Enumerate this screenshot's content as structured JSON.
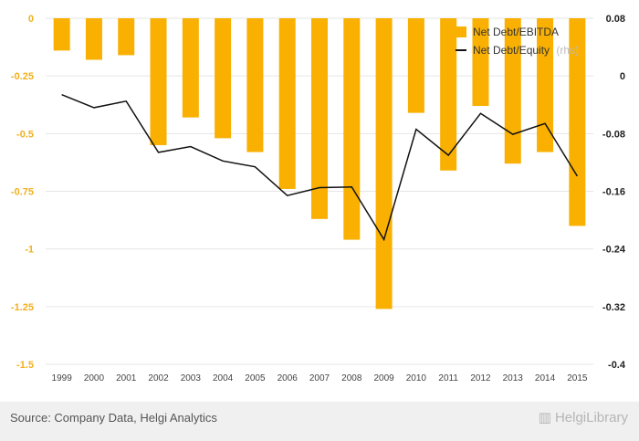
{
  "chart_data": {
    "type": "bar+line",
    "categories": [
      "1999",
      "2000",
      "2001",
      "2002",
      "2003",
      "2004",
      "2005",
      "2006",
      "2007",
      "2008",
      "2009",
      "2010",
      "2011",
      "2012",
      "2013",
      "2014",
      "2015"
    ],
    "series": [
      {
        "name": "Net Debt/EBITDA",
        "type": "bar",
        "axis": "left",
        "color": "#f9b000",
        "values": [
          -0.14,
          -0.18,
          -0.16,
          -0.55,
          -0.43,
          -0.52,
          -0.58,
          -0.74,
          -0.87,
          -0.96,
          -1.26,
          -0.41,
          -0.66,
          -0.38,
          -0.63,
          -0.58,
          -0.9
        ]
      },
      {
        "name": "Net Debt/Equity",
        "name_suffix": "(rhs)",
        "type": "line",
        "axis": "right",
        "color": "#111111",
        "values": [
          -0.026,
          -0.044,
          -0.035,
          -0.106,
          -0.098,
          -0.118,
          -0.126,
          -0.166,
          -0.155,
          -0.154,
          -0.227,
          -0.074,
          -0.11,
          -0.052,
          -0.081,
          -0.066,
          -0.139
        ]
      }
    ],
    "y_left": {
      "min": -1.5,
      "max": 0,
      "ticks": [
        "0",
        "-0.25",
        "-0.5",
        "-0.75",
        "-1",
        "-1.25",
        "-1.5"
      ]
    },
    "y_right": {
      "min": -0.4,
      "max": 0.08,
      "ticks": [
        "0.08",
        "0",
        "-0.08",
        "-0.16",
        "-0.24",
        "-0.32",
        "-0.4"
      ]
    },
    "grid": true,
    "legend_position": "top-right"
  },
  "footer": {
    "source": "Source: Company Data, Helgi Analytics",
    "brand": "HelgiLibrary",
    "brand_icon": "helgi-logo-icon"
  }
}
